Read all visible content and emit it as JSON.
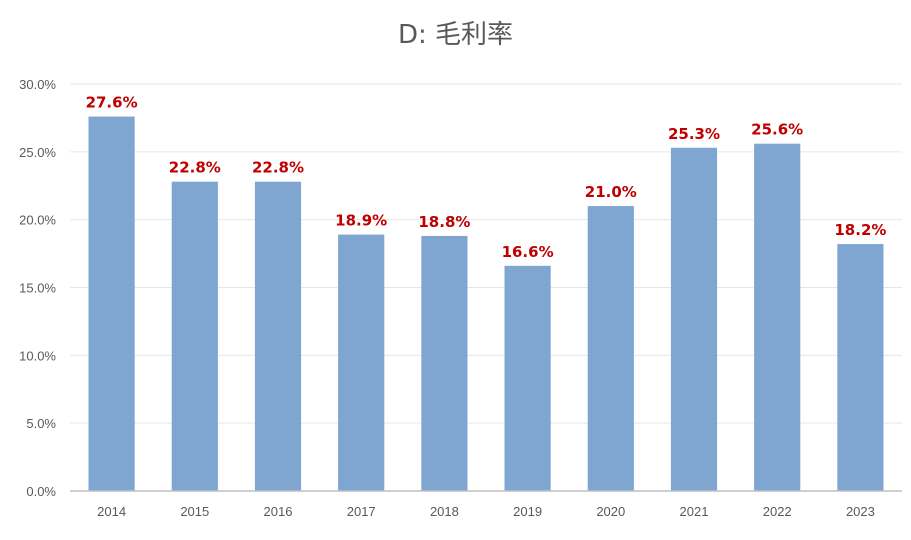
{
  "chart_data": {
    "type": "bar",
    "title": "D: 毛利率",
    "categories": [
      "2014",
      "2015",
      "2016",
      "2017",
      "2018",
      "2019",
      "2020",
      "2021",
      "2022",
      "2023"
    ],
    "values": [
      27.6,
      22.8,
      22.8,
      18.9,
      18.8,
      16.6,
      21.0,
      25.3,
      25.6,
      18.2
    ],
    "data_labels": [
      "27.6%",
      "22.8%",
      "22.8%",
      "18.9%",
      "18.8%",
      "16.6%",
      "21.0%",
      "25.3%",
      "25.6%",
      "18.2%"
    ],
    "y_ticks": [
      "0.0%",
      "5.0%",
      "10.0%",
      "15.0%",
      "20.0%",
      "25.0%",
      "30.0%"
    ],
    "ylim": [
      0,
      30
    ],
    "grid": true,
    "legend": "none",
    "xlabel": "",
    "ylabel": "",
    "colors": {
      "bar": "#7fa5d1",
      "data_label": "#c00000",
      "gridline": "#e6e6e6",
      "axis": "#bfbfbf"
    }
  }
}
